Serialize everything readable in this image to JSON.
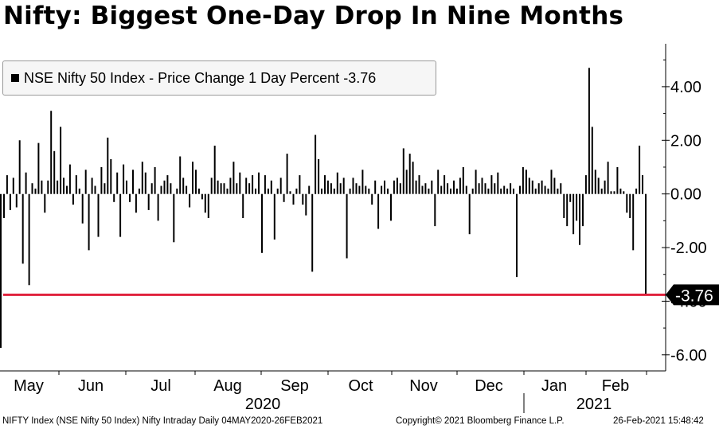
{
  "title": "Nifty: Biggest One-Day Drop In Nine Months",
  "legend": {
    "label": "NSE Nifty 50 Index - Price Change 1 Day Percent",
    "last_value": "-3.76"
  },
  "footer": {
    "left": "NIFTY Index (NSE Nifty 50 Index) Nifty Intraday  Daily 04MAY2020-26FEB2021",
    "copyright": "Copyright© 2021 Bloomberg Finance L.P.",
    "timestamp": "26-Feb-2021 15:48:42"
  },
  "colors": {
    "bars": "#000000",
    "reference_line": "#e0223d",
    "axis_label_bg": "#000000",
    "axis_label_text": "#ffffff"
  },
  "chart_data": {
    "type": "bar",
    "ylim": [
      -6.6,
      5.6
    ],
    "yticks": [
      "4.00",
      "2.00",
      "0.00",
      "-2.00",
      "-4.00",
      "-6.00"
    ],
    "ytick_values": [
      4,
      2,
      0,
      -2,
      -4,
      -6
    ],
    "months": [
      "May",
      "Jun",
      "Jul",
      "Aug",
      "Sep",
      "Oct",
      "Nov",
      "Dec",
      "Jan",
      "Feb"
    ],
    "years": [
      "2020",
      "2021"
    ],
    "reference_line": -3.76,
    "last_value_label": "-3.76",
    "values": [
      -5.74,
      -0.9,
      0.7,
      -0.6,
      0.6,
      -0.5,
      2.0,
      -2.6,
      0.8,
      -3.4,
      0.4,
      0.2,
      1.9,
      0.5,
      -0.7,
      0.5,
      3.1,
      1.6,
      0.5,
      2.5,
      0.6,
      0.3,
      1.1,
      -0.4,
      0.7,
      0.2,
      -1.1,
      0.9,
      -2.1,
      0.6,
      0.3,
      -1.6,
      1.0,
      0.4,
      2.1,
      1.3,
      -0.3,
      0.8,
      -1.6,
      1.1,
      0.5,
      -0.3,
      0.9,
      -0.7,
      0.2,
      1.2,
      0.8,
      -0.6,
      0.4,
      1.0,
      -1.0,
      0.3,
      0.5,
      0.7,
      0.4,
      -1.8,
      0.2,
      1.4,
      0.6,
      0.3,
      -0.5,
      1.2,
      0.9,
      0.2,
      -0.2,
      -0.7,
      -0.9,
      0.6,
      1.8,
      0.5,
      0.4,
      0.4,
      0.2,
      0.6,
      1.2,
      0.4,
      0.8,
      -0.9,
      0.6,
      0.4,
      0.7,
      0.2,
      0.8,
      -2.2,
      0.7,
      0.2,
      0.5,
      -1.7,
      0.2,
      0.6,
      -0.3,
      1.5,
      0.1,
      -0.4,
      0.2,
      0.7,
      -0.4,
      -0.8,
      0.3,
      -2.9,
      2.2,
      1.3,
      0.2,
      0.7,
      0.5,
      0.4,
      0.2,
      0.8,
      0.4,
      0.6,
      -2.4,
      0.2,
      0.6,
      0.4,
      0.3,
      0.9,
      0.3,
      0.2,
      -0.4,
      0.5,
      -1.3,
      0.3,
      0.5,
      0.2,
      -1.0,
      0.5,
      0.6,
      0.4,
      1.7,
      0.9,
      1.5,
      1.2,
      0.5,
      0.7,
      0.3,
      0.4,
      0.2,
      0.5,
      -1.2,
      0.9,
      0.3,
      0.7,
      0.4,
      0.2,
      0.5,
      0.2,
      0.6,
      1.0,
      0.3,
      -1.5,
      0.2,
      0.9,
      0.4,
      0.6,
      0.4,
      0.2,
      0.7,
      0.4,
      0.8,
      0.2,
      0.3,
      0.2,
      0.4,
      0.2,
      -3.1,
      0.3,
      1.0,
      0.9,
      0.6,
      0.5,
      0.2,
      0.4,
      0.5,
      0.3,
      0.2,
      0.9,
      0.6,
      0.2,
      0.4,
      -0.9,
      -1.2,
      -0.3,
      -1.5,
      -1.0,
      -1.9,
      -1.2,
      0.7,
      4.7,
      2.5,
      0.9,
      0.6,
      0.2,
      0.5,
      1.2,
      0.1,
      0.1,
      1.0,
      0.2,
      0.1,
      -0.7,
      -0.9,
      -2.1,
      0.2,
      1.8,
      0.7,
      -3.76
    ]
  }
}
